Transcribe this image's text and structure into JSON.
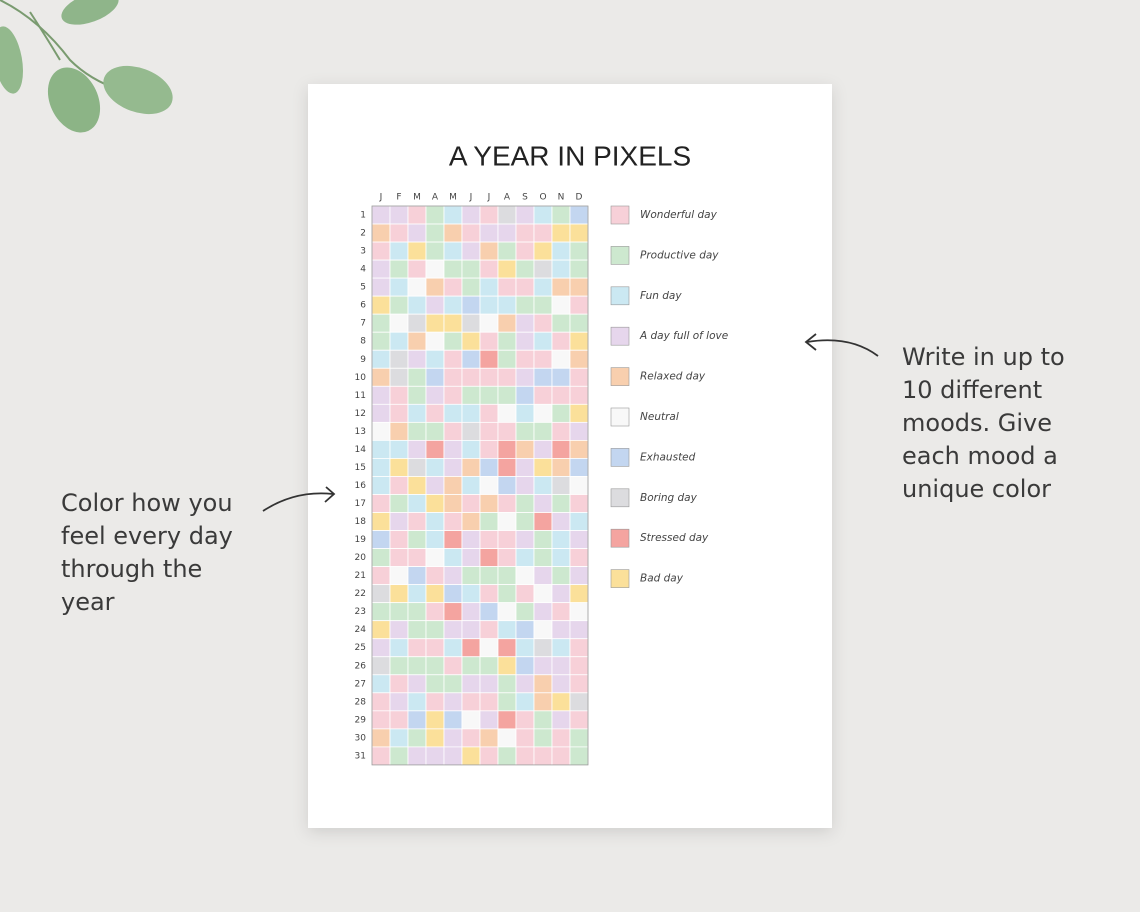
{
  "page": {
    "title": "A YEAR IN PIXELS",
    "months": [
      "J",
      "F",
      "M",
      "A",
      "M",
      "J",
      "J",
      "A",
      "S",
      "O",
      "N",
      "D"
    ],
    "days": [
      1,
      2,
      3,
      4,
      5,
      6,
      7,
      8,
      9,
      10,
      11,
      12,
      13,
      14,
      15,
      16,
      17,
      18,
      19,
      20,
      21,
      22,
      23,
      24,
      25,
      26,
      27,
      28,
      29,
      30,
      31
    ],
    "legend": [
      {
        "label": "Wonderful day",
        "color": "#f7d0d8"
      },
      {
        "label": "Productive day",
        "color": "#cde8cf"
      },
      {
        "label": "Fun day",
        "color": "#cbe8f2"
      },
      {
        "label": "A day full of love",
        "color": "#e6d6ec"
      },
      {
        "label": "Relaxed day",
        "color": "#f8cfae"
      },
      {
        "label": "Neutral",
        "color": "#f8f8f8"
      },
      {
        "label": "Exhausted",
        "color": "#c3d6f0"
      },
      {
        "label": "Boring day",
        "color": "#dcdcdf"
      },
      {
        "label": "Stressed day",
        "color": "#f4a4a0"
      },
      {
        "label": "Bad day",
        "color": "#fbe09a"
      }
    ],
    "left_note": [
      "Color how you",
      "feel every day",
      "through the",
      "year"
    ],
    "right_note": [
      "Write in up to",
      "10 different",
      "moods. Give",
      "each mood a",
      "unique color"
    ]
  }
}
